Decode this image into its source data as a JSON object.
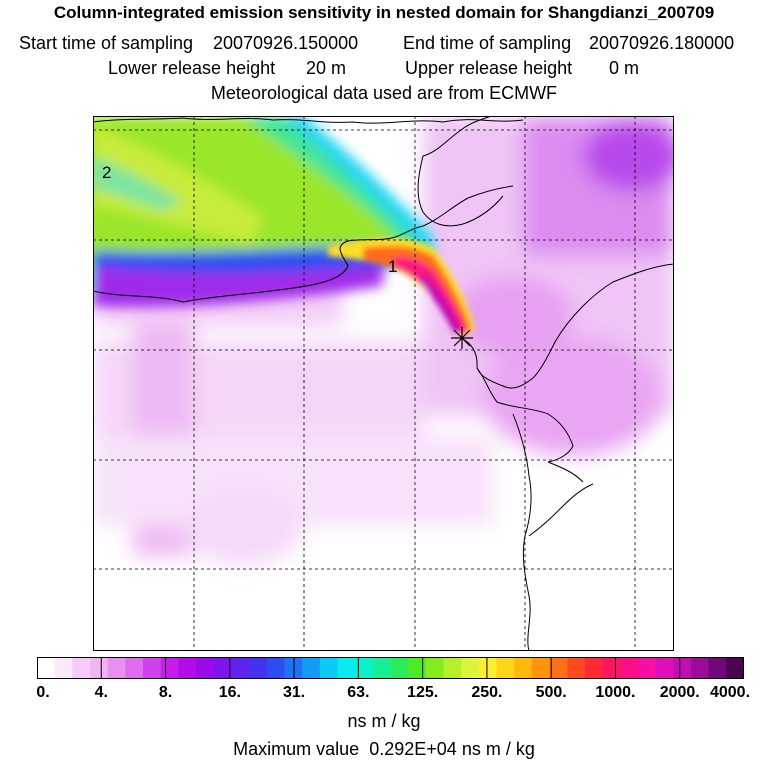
{
  "title": {
    "line1": "Column-integrated emission sensitivity in nested domain for Shangdianzi_200709",
    "start_label": "Start time of sampling",
    "start_value": "20070926.150000",
    "end_label": "End time of sampling",
    "end_value": "20070926.180000",
    "lower_label": "Lower release height",
    "lower_value": "20 m",
    "upper_label": "Upper release height",
    "upper_value": "0 m",
    "line4": "Meteorological data used are from ECMWF"
  },
  "map": {
    "markers": [
      "1",
      "2"
    ],
    "site_symbol": "star"
  },
  "colorbar": {
    "ticks": [
      "0.",
      "4.",
      "8.",
      "16.",
      "31.",
      "63.",
      "125.",
      "250.",
      "500.",
      "1000.",
      "2000.",
      "4000."
    ],
    "colors": [
      "#ffffff",
      "#fbe8fb",
      "#f5ccf7",
      "#f0b4f5",
      "#e890f0",
      "#de6ded",
      "#d040ea",
      "#c51ee8",
      "#b40ce8",
      "#9a0bec",
      "#7c15ee",
      "#5f24f0",
      "#4432f0",
      "#2f4cf3",
      "#1f72f5",
      "#139cf7",
      "#0ccaf8",
      "#09eaf3",
      "#08f2cc",
      "#12ef96",
      "#2cec5c",
      "#4eeb23",
      "#84ec1c",
      "#b5ef2a",
      "#dff33c",
      "#fbef2f",
      "#ffd718",
      "#ffb80e",
      "#ff950f",
      "#ff6f18",
      "#ff4a1f",
      "#ff2a36",
      "#ff1560",
      "#ff0f86",
      "#f60ea5",
      "#e10ebb",
      "#c00fb1",
      "#9a0c97",
      "#700878",
      "#4a0550"
    ],
    "units": "ns m / kg"
  },
  "footer": {
    "maximum_label": "Maximum value",
    "maximum_value": "0.292E+04",
    "maximum_units": "ns m / kg"
  }
}
